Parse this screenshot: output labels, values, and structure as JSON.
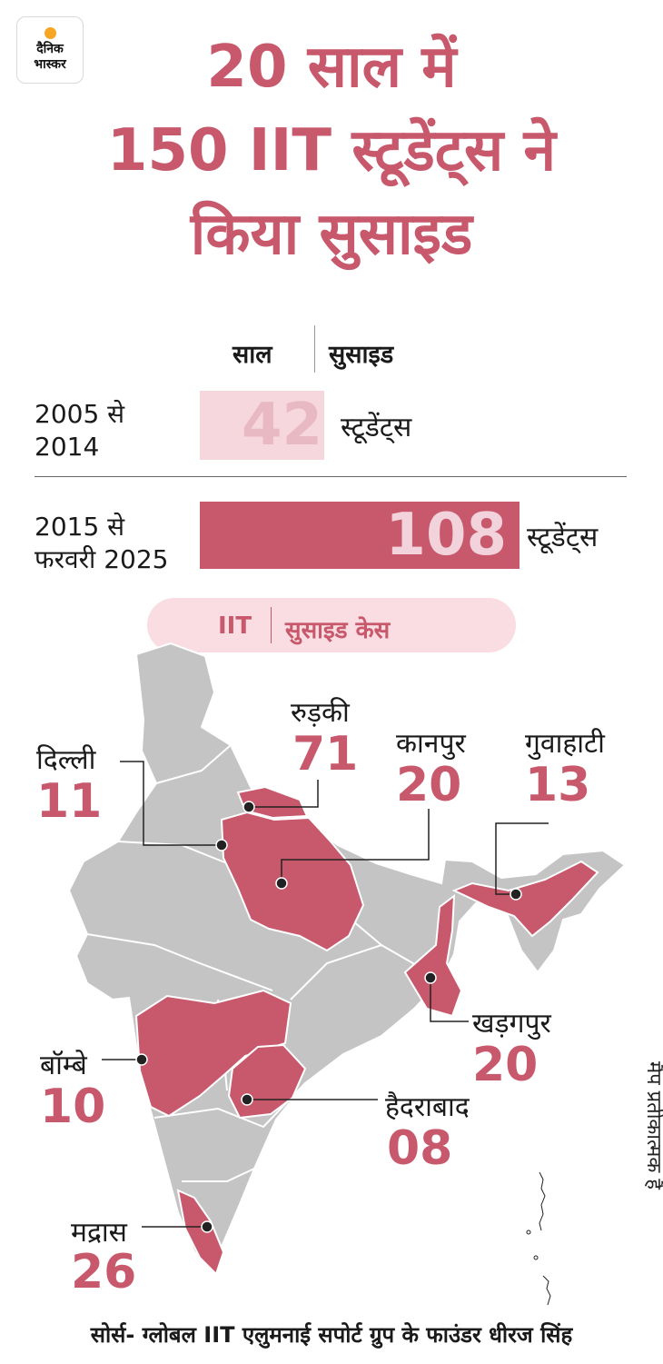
{
  "brand": {
    "logo_line1": "दैनिक",
    "logo_line2": "भास्कर"
  },
  "title_lines": [
    "20 साल में",
    "150 IIT स्टूडेंट्स ने",
    "किया सुसाइड"
  ],
  "table_header": {
    "year": "साल",
    "suicide": "सुसाइड"
  },
  "chart_data": {
    "type": "bar",
    "orientation": "horizontal",
    "categories": [
      "2005 से 2014",
      "2015 से फरवरी 2025"
    ],
    "values": [
      42,
      108
    ],
    "unit": "स्टूडेंट्स",
    "xlim": [
      0,
      108
    ]
  },
  "rows": [
    {
      "label_line1": "2005 से",
      "label_line2": "2014",
      "value": "42",
      "unit": "स्टूडेंट्स"
    },
    {
      "label_line1": "2015 से",
      "label_line2": "फरवरी 2025",
      "value": "108",
      "unit": "स्टूडेंट्स"
    }
  ],
  "legend_pill": {
    "left": "IIT",
    "right": "सुसाइड केस"
  },
  "cities": [
    {
      "name": "रुड़की",
      "count": "71"
    },
    {
      "name": "दिल्ली",
      "count": "11"
    },
    {
      "name": "कानपुर",
      "count": "20"
    },
    {
      "name": "गुवाहाटी",
      "count": "13"
    },
    {
      "name": "खड़गपुर",
      "count": "20"
    },
    {
      "name": "बॉम्बे",
      "count": "10"
    },
    {
      "name": "हैदराबाद",
      "count": "08"
    },
    {
      "name": "मद्रास",
      "count": "26"
    }
  ],
  "map_note": "मैप प्रतीकात्मक है",
  "source": "सोर्स- ग्लोबल IIT एलुमनाई सपोर्ट ग्रुप के फाउंडर धीरज सिंह",
  "colors": {
    "accent": "#c8586b",
    "accent_light": "#f6d7de",
    "map_gray": "#c4c4c4",
    "text": "#1a1a1a"
  }
}
